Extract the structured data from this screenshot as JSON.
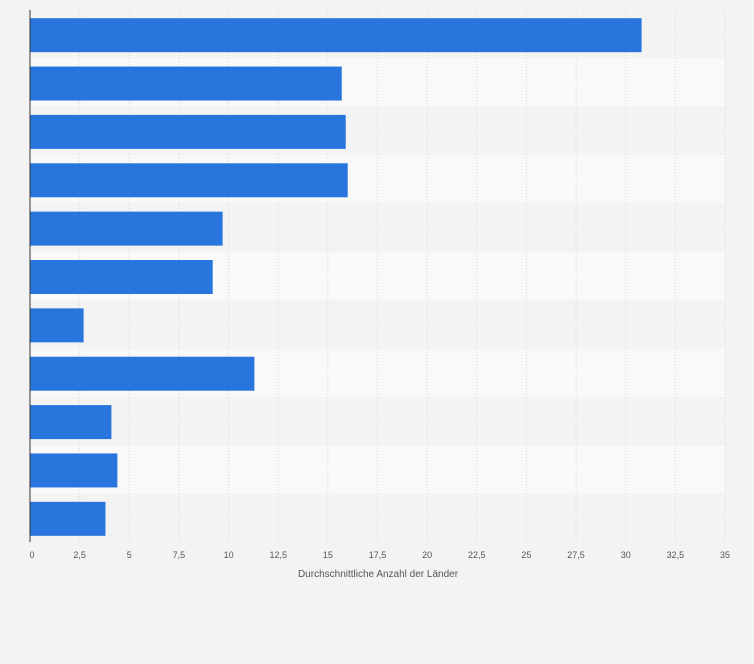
{
  "chart_data": {
    "type": "bar",
    "orientation": "horizontal",
    "categories": [
      "",
      "",
      "",
      "",
      "",
      "",
      "",
      "",
      "",
      "",
      ""
    ],
    "values": [
      30.8,
      15.7,
      15.9,
      16.0,
      9.7,
      9.2,
      2.7,
      11.3,
      4.1,
      4.4,
      3.8
    ],
    "xlabel": "Durchschnittliche Anzahl der Länder",
    "ylabel": "",
    "xlim": [
      0,
      35
    ],
    "xticks": [
      0,
      2.5,
      5,
      7.5,
      10,
      12.5,
      15,
      17.5,
      20,
      22.5,
      25,
      27.5,
      30,
      32.5,
      35
    ],
    "xtick_labels": [
      "0",
      "2,5",
      "5",
      "7,5",
      "10",
      "12,5",
      "15",
      "17,5",
      "20",
      "22,5",
      "25",
      "27,5",
      "30",
      "32,5",
      "35"
    ],
    "grid": true,
    "legend": "none",
    "colors": {
      "bar": "#2876dd",
      "band_light": "#f9f9f9",
      "band_dark": "#f3f3f3",
      "grid": "#d6d6d6",
      "axis": "#333333",
      "text": "#555555"
    }
  }
}
